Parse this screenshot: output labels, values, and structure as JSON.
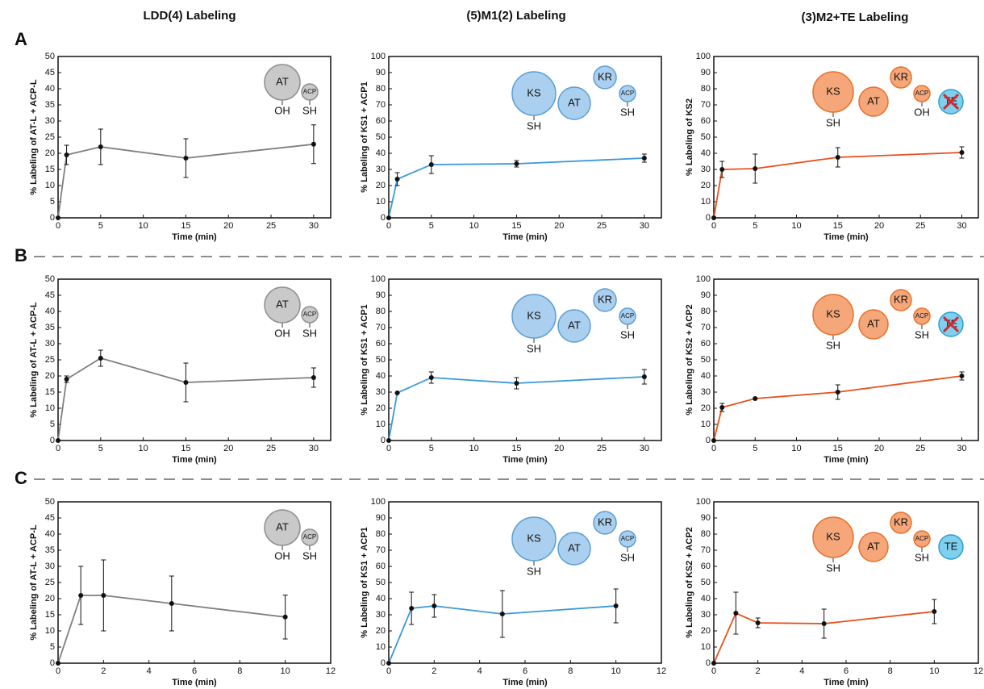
{
  "columns": [
    "LDD(4) Labeling",
    "(5)M1(2) Labeling",
    "(3)M2+TE Labeling"
  ],
  "rows": [
    "A",
    "B",
    "C"
  ],
  "chart_data": [
    {
      "type": "line",
      "xlabel": "Time (min)",
      "ylabel": "% Labeling of AT-L + ACP-L",
      "x": [
        0,
        1,
        5,
        15,
        30
      ],
      "xlim": [
        0,
        32
      ],
      "xticks": [
        0,
        5,
        10,
        15,
        20,
        25,
        30
      ],
      "ylim": [
        0,
        50
      ],
      "yticks": [
        0,
        5,
        10,
        15,
        20,
        25,
        30,
        35,
        40,
        45,
        50
      ],
      "series": [
        {
          "color": "#7f7f7f",
          "values": [
            0,
            19.5,
            22,
            18.5,
            22.8
          ],
          "errors": [
            0,
            3,
            5.5,
            6,
            6
          ]
        }
      ],
      "icon_color": [
        "#c9c9c9",
        "#8f8f8f"
      ],
      "domains": [
        {
          "label": "AT",
          "sub": "OH"
        },
        {
          "label": "ACP",
          "sub": "SH"
        }
      ]
    },
    {
      "type": "line",
      "xlabel": "Time (min)",
      "ylabel": "% Labeling of KS1 + ACP1",
      "x": [
        0,
        1,
        5,
        15,
        30
      ],
      "xlim": [
        0,
        32
      ],
      "xticks": [
        0,
        5,
        10,
        15,
        20,
        25,
        30
      ],
      "ylim": [
        0,
        100
      ],
      "yticks": [
        0,
        10,
        20,
        30,
        40,
        50,
        60,
        70,
        80,
        90,
        100
      ],
      "series": [
        {
          "color": "#3a9ad9",
          "values": [
            0,
            24,
            33,
            33.5,
            37
          ],
          "errors": [
            0,
            4,
            5.5,
            2,
            2.5
          ]
        }
      ],
      "icon_color": [
        "#abcfee",
        "#5a9fd4"
      ],
      "domains": [
        {
          "label": "KS",
          "sub": "SH"
        },
        {
          "label": "AT"
        },
        {
          "label": "KR"
        },
        {
          "label": "ACP",
          "sub": "SH"
        }
      ]
    },
    {
      "type": "line",
      "xlabel": "Time (min)",
      "ylabel": "% Labeling of KS2",
      "x": [
        0,
        1,
        5,
        15,
        30
      ],
      "xlim": [
        0,
        32
      ],
      "xticks": [
        0,
        5,
        10,
        15,
        20,
        25,
        30
      ],
      "ylim": [
        0,
        100
      ],
      "yticks": [
        0,
        10,
        20,
        30,
        40,
        50,
        60,
        70,
        80,
        90,
        100
      ],
      "series": [
        {
          "color": "#e8501e",
          "values": [
            0,
            30,
            30.5,
            37.5,
            40.5
          ],
          "errors": [
            0,
            5,
            9,
            6,
            3.5
          ]
        }
      ],
      "icon_color": [
        "#f6a77a",
        "#e8702a"
      ],
      "domains": [
        {
          "label": "KS",
          "sub": "SH"
        },
        {
          "label": "AT"
        },
        {
          "label": "KR"
        },
        {
          "label": "ACP",
          "sub": "OH"
        },
        {
          "label": "TE",
          "color": "#7fd0ee",
          "inactive": true
        }
      ]
    },
    {
      "type": "line",
      "xlabel": "Time (min)",
      "ylabel": "% Labeling of AT-L + ACP-L",
      "x": [
        0,
        1,
        5,
        15,
        30
      ],
      "xlim": [
        0,
        32
      ],
      "xticks": [
        0,
        5,
        10,
        15,
        20,
        25,
        30
      ],
      "ylim": [
        0,
        50
      ],
      "yticks": [
        0,
        5,
        10,
        15,
        20,
        25,
        30,
        35,
        40,
        45,
        50
      ],
      "series": [
        {
          "color": "#7f7f7f",
          "values": [
            0,
            19,
            25.5,
            18,
            19.5
          ],
          "errors": [
            0,
            1,
            2.5,
            6,
            3
          ]
        }
      ],
      "icon_color": [
        "#c9c9c9",
        "#8f8f8f"
      ],
      "domains": [
        {
          "label": "AT",
          "sub": "OH"
        },
        {
          "label": "ACP",
          "sub": "SH"
        }
      ]
    },
    {
      "type": "line",
      "xlabel": "Time (min)",
      "ylabel": "% Labeling of KS1 + ACP1",
      "x": [
        0,
        1,
        5,
        15,
        30
      ],
      "xlim": [
        0,
        32
      ],
      "xticks": [
        0,
        5,
        10,
        15,
        20,
        25,
        30
      ],
      "ylim": [
        0,
        100
      ],
      "yticks": [
        0,
        10,
        20,
        30,
        40,
        50,
        60,
        70,
        80,
        90,
        100
      ],
      "series": [
        {
          "color": "#3a9ad9",
          "values": [
            0,
            29.5,
            39,
            35.5,
            39.5
          ],
          "errors": [
            0,
            0,
            3.5,
            3.5,
            4.5
          ]
        }
      ],
      "icon_color": [
        "#abcfee",
        "#5a9fd4"
      ],
      "domains": [
        {
          "label": "KS",
          "sub": "SH"
        },
        {
          "label": "AT"
        },
        {
          "label": "KR"
        },
        {
          "label": "ACP",
          "sub": "SH"
        }
      ]
    },
    {
      "type": "line",
      "xlabel": "Time (min)",
      "ylabel": "% Labeling of KS2 + ACP2",
      "x": [
        0,
        1,
        5,
        15,
        30
      ],
      "xlim": [
        0,
        32
      ],
      "xticks": [
        0,
        5,
        10,
        15,
        20,
        25,
        30
      ],
      "ylim": [
        0,
        100
      ],
      "yticks": [
        0,
        10,
        20,
        30,
        40,
        50,
        60,
        70,
        80,
        90,
        100
      ],
      "series": [
        {
          "color": "#e8501e",
          "values": [
            0,
            20.5,
            26,
            30,
            40
          ],
          "errors": [
            0,
            2.5,
            0,
            4.5,
            2.5
          ]
        }
      ],
      "icon_color": [
        "#f6a77a",
        "#e8702a"
      ],
      "domains": [
        {
          "label": "KS",
          "sub": "SH"
        },
        {
          "label": "AT"
        },
        {
          "label": "KR"
        },
        {
          "label": "ACP",
          "sub": "SH"
        },
        {
          "label": "TE",
          "color": "#7fd0ee",
          "inactive": true
        }
      ]
    },
    {
      "type": "line",
      "xlabel": "Time (min)",
      "ylabel": "% Labeling of AT-L + ACP-L",
      "x": [
        0,
        1,
        2,
        5,
        10
      ],
      "xlim": [
        0,
        12
      ],
      "xticks": [
        0,
        2,
        4,
        6,
        8,
        10,
        12
      ],
      "ylim": [
        0,
        50
      ],
      "yticks": [
        0,
        5,
        10,
        15,
        20,
        25,
        30,
        35,
        40,
        45,
        50
      ],
      "series": [
        {
          "color": "#7f7f7f",
          "values": [
            0,
            21,
            21,
            18.5,
            14.3
          ],
          "errors": [
            0,
            9,
            11,
            8.5,
            6.8
          ]
        }
      ],
      "icon_color": [
        "#c9c9c9",
        "#8f8f8f"
      ],
      "domains": [
        {
          "label": "AT",
          "sub": "OH"
        },
        {
          "label": "ACP",
          "sub": "SH"
        }
      ]
    },
    {
      "type": "line",
      "xlabel": "Time (min)",
      "ylabel": "% Labeling of KS1 + ACP1",
      "x": [
        0,
        1,
        2,
        5,
        10
      ],
      "xlim": [
        0,
        12
      ],
      "xticks": [
        0,
        2,
        4,
        6,
        8,
        10,
        12
      ],
      "ylim": [
        0,
        100
      ],
      "yticks": [
        0,
        10,
        20,
        30,
        40,
        50,
        60,
        70,
        80,
        90,
        100
      ],
      "series": [
        {
          "color": "#3a9ad9",
          "values": [
            0,
            34,
            35.5,
            30.5,
            35.5
          ],
          "errors": [
            0,
            10,
            7,
            14.5,
            10.5
          ]
        }
      ],
      "icon_color": [
        "#abcfee",
        "#5a9fd4"
      ],
      "domains": [
        {
          "label": "KS",
          "sub": "SH"
        },
        {
          "label": "AT"
        },
        {
          "label": "KR"
        },
        {
          "label": "ACP",
          "sub": "SH"
        }
      ]
    },
    {
      "type": "line",
      "xlabel": "Time (min)",
      "ylabel": "% Labeling of KS2 + ACP2",
      "x": [
        0,
        1,
        2,
        5,
        10
      ],
      "xlim": [
        0,
        12
      ],
      "xticks": [
        0,
        2,
        4,
        6,
        8,
        10,
        12
      ],
      "ylim": [
        0,
        100
      ],
      "yticks": [
        0,
        10,
        20,
        30,
        40,
        50,
        60,
        70,
        80,
        90,
        100
      ],
      "series": [
        {
          "color": "#e8501e",
          "values": [
            0,
            31,
            25,
            24.5,
            32
          ],
          "errors": [
            0,
            13,
            3,
            9,
            7.5
          ]
        }
      ],
      "icon_color": [
        "#f6a77a",
        "#e8702a"
      ],
      "domains": [
        {
          "label": "KS",
          "sub": "SH"
        },
        {
          "label": "AT"
        },
        {
          "label": "KR"
        },
        {
          "label": "ACP",
          "sub": "SH"
        },
        {
          "label": "TE",
          "color": "#7fd0ee"
        }
      ]
    }
  ]
}
